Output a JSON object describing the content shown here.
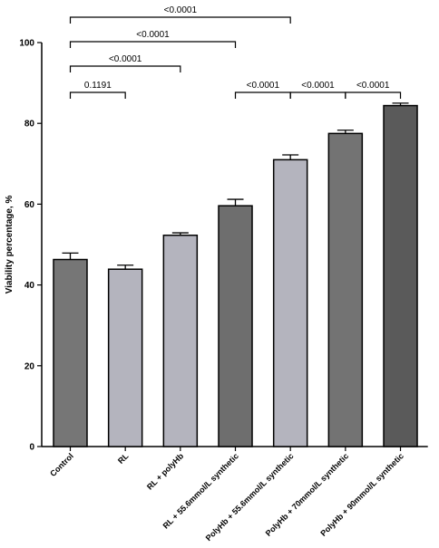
{
  "chart_data": {
    "type": "bar",
    "title": "",
    "xlabel": "",
    "ylabel": "Viability percentage, %",
    "ylim": [
      0,
      100
    ],
    "yticks": [
      0,
      20,
      40,
      60,
      80,
      100
    ],
    "grid": false,
    "categories": [
      "Control",
      "RL",
      "RL + polyHb",
      "RL + 55.6mmol/L synthetic",
      "PolyHb + 55.6mmol/L synthetic",
      "PolyHb + 70mmol/L synthetic",
      "PolyHb + 90mmol/L synthetic"
    ],
    "values": [
      46.3,
      43.9,
      52.3,
      59.6,
      71.0,
      77.5,
      84.4
    ],
    "errors": [
      1.6,
      1.0,
      0.6,
      1.6,
      1.2,
      0.8,
      0.6
    ],
    "colors": [
      "#767676",
      "#b4b4be",
      "#b4b4be",
      "#6e6e6e",
      "#b4b4be",
      "#737373",
      "#5a5a5a"
    ],
    "comparisons": [
      {
        "from": 0,
        "to": 1,
        "label": "0.1191"
      },
      {
        "from": 0,
        "to": 2,
        "label": "<0.0001"
      },
      {
        "from": 0,
        "to": 3,
        "label": "<0.0001"
      },
      {
        "from": 0,
        "to": 4,
        "label": "<0.0001"
      },
      {
        "from": 3,
        "to": 4,
        "label": "<0.0001"
      },
      {
        "from": 4,
        "to": 5,
        "label": "<0.0001"
      },
      {
        "from": 5,
        "to": 6,
        "label": "<0.0001"
      }
    ]
  }
}
